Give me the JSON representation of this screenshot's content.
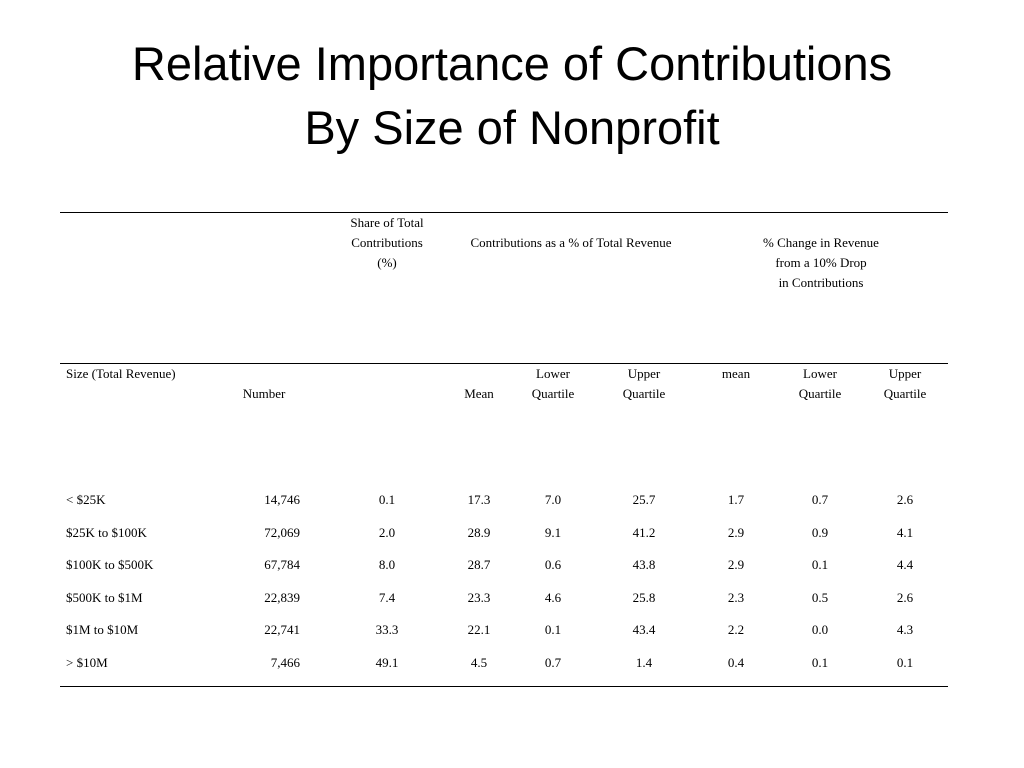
{
  "title": {
    "line1": "Relative Importance of Contributions",
    "line2": "By Size of Nonprofit"
  },
  "table": {
    "group_headers": {
      "share": [
        "Share of Total",
        "Contributions",
        "(%)"
      ],
      "contrib_pct": "Contributions as a % of Total Revenue",
      "change": [
        "% Change in Revenue from a 10% Drop",
        "in Contributions"
      ]
    },
    "sub_headers": {
      "size": "Size (Total Revenue)",
      "number": "Number",
      "mean": "Mean",
      "lower_quartile": [
        "Lower",
        "Quartile"
      ],
      "upper_quartile": [
        "Upper",
        "Quartile"
      ],
      "mean2": "mean",
      "lower_quartile2": [
        "Lower",
        "Quartile"
      ],
      "upper_quartile2": [
        "Upper",
        "Quartile"
      ]
    },
    "rows": [
      [
        "< $25K",
        "14,746",
        "0.1",
        "17.3",
        "7.0",
        "25.7",
        "1.7",
        "0.7",
        "2.6"
      ],
      [
        "$25K to $100K",
        "72,069",
        "2.0",
        "28.9",
        "9.1",
        "41.2",
        "2.9",
        "0.9",
        "4.1"
      ],
      [
        "$100K to $500K",
        "67,784",
        "8.0",
        "28.7",
        "0.6",
        "43.8",
        "2.9",
        "0.1",
        "4.4"
      ],
      [
        "$500K to $1M",
        "22,839",
        "7.4",
        "23.3",
        "4.6",
        "25.8",
        "2.3",
        "0.5",
        "2.6"
      ],
      [
        "$1M to $10M",
        "22,741",
        "33.3",
        "22.1",
        "0.1",
        "43.4",
        "2.2",
        "0.0",
        "4.3"
      ],
      [
        "> $10M",
        "7,466",
        "49.1",
        "4.5",
        "0.7",
        "1.4",
        "0.4",
        "0.1",
        "0.1"
      ]
    ]
  }
}
